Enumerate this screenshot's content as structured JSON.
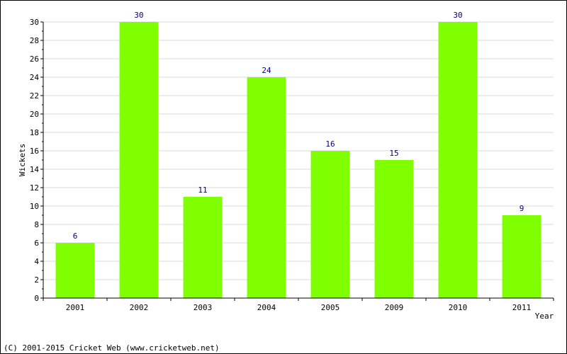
{
  "chart_data": {
    "type": "bar",
    "title": "",
    "xlabel": "Year",
    "ylabel": "Wickets",
    "categories": [
      "2001",
      "2002",
      "2003",
      "2004",
      "2005",
      "2009",
      "2010",
      "2011"
    ],
    "values": [
      6,
      30,
      11,
      24,
      16,
      15,
      30,
      9
    ],
    "ylim": [
      0,
      30
    ],
    "y_ticks": [
      0,
      2,
      4,
      6,
      8,
      10,
      12,
      14,
      16,
      18,
      20,
      22,
      24,
      26,
      28,
      30
    ],
    "grid": true,
    "bar_color": "#80ff00",
    "label_color": "#000080"
  },
  "footer": {
    "copyright": "(C) 2001-2015 Cricket Web (www.cricketweb.net)"
  }
}
